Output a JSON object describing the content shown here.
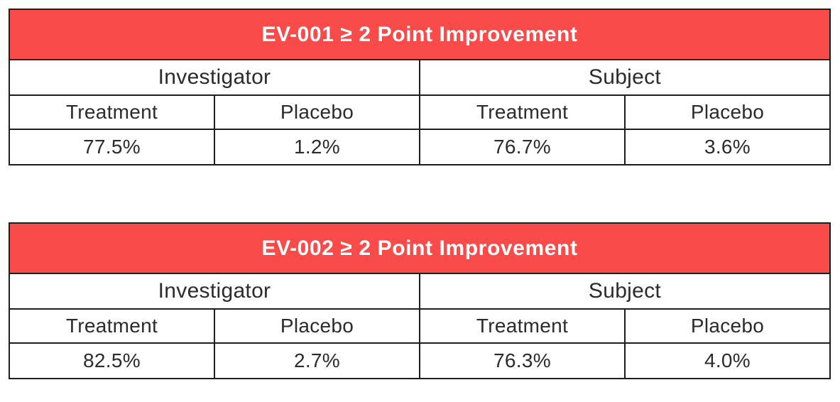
{
  "accent_color": "#FA4B4B",
  "border_color": "#1E1E1E",
  "text_color": "#2B2B2B",
  "title_text_color": "#FFFFFF",
  "tables": [
    {
      "title": "EV-001 ≥ 2 Point Improvement",
      "groups": [
        "Investigator",
        "Subject"
      ],
      "columns": [
        "Treatment",
        "Placebo",
        "Treatment",
        "Placebo"
      ],
      "values": [
        "77.5%",
        "1.2%",
        "76.7%",
        "3.6%"
      ]
    },
    {
      "title": "EV-002 ≥ 2 Point Improvement",
      "groups": [
        "Investigator",
        "Subject"
      ],
      "columns": [
        "Treatment",
        "Placebo",
        "Treatment",
        "Placebo"
      ],
      "values": [
        "82.5%",
        "2.7%",
        "76.3%",
        "4.0%"
      ]
    }
  ],
  "chart_data": [
    {
      "type": "table",
      "title": "EV-001 ≥ 2 Point Improvement",
      "column_groups": [
        "Investigator",
        "Subject"
      ],
      "columns": [
        "Investigator Treatment",
        "Investigator Placebo",
        "Subject Treatment",
        "Subject Placebo"
      ],
      "values": [
        77.5,
        1.2,
        76.7,
        3.6
      ],
      "unit": "%"
    },
    {
      "type": "table",
      "title": "EV-002 ≥ 2 Point Improvement",
      "column_groups": [
        "Investigator",
        "Subject"
      ],
      "columns": [
        "Investigator Treatment",
        "Investigator Placebo",
        "Subject Treatment",
        "Subject Placebo"
      ],
      "values": [
        82.5,
        2.7,
        76.3,
        4.0
      ],
      "unit": "%"
    }
  ]
}
